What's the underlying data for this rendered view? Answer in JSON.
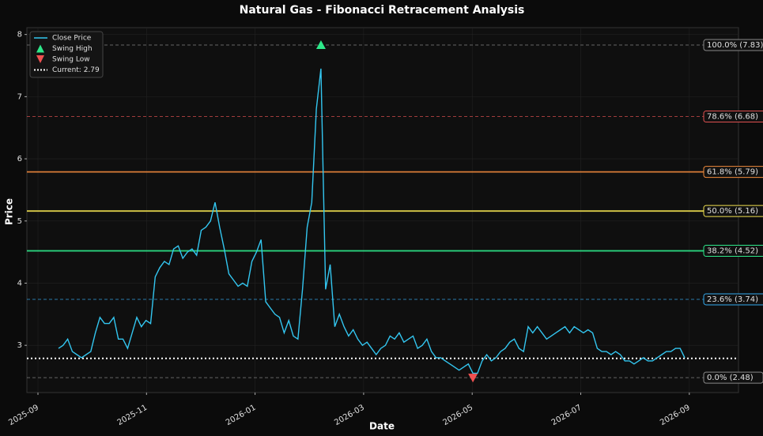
{
  "chart_data": {
    "type": "line",
    "title": "Natural Gas - Fibonacci Retracement Analysis",
    "x_label": "Date",
    "y_label": "Price",
    "xticks": [
      "2025-09",
      "2025-11",
      "2026-01",
      "2026-03",
      "2026-05",
      "2026-07",
      "2026-09"
    ],
    "ylim": [
      2.24,
      8.11
    ],
    "yticks": [
      3,
      4,
      5,
      6,
      7,
      8
    ],
    "grid": true,
    "legend": "upper left",
    "series": [
      {
        "name": "Close Price",
        "color": "#33c6f0",
        "values": [
          2.95,
          3.0,
          3.1,
          2.9,
          2.85,
          2.8,
          2.85,
          2.9,
          3.2,
          3.45,
          3.35,
          3.35,
          3.45,
          3.1,
          3.1,
          2.95,
          3.2,
          3.45,
          3.3,
          3.4,
          3.35,
          4.1,
          4.25,
          4.35,
          4.3,
          4.55,
          4.6,
          4.4,
          4.5,
          4.55,
          4.45,
          4.85,
          4.9,
          5.0,
          5.3,
          4.9,
          4.55,
          4.15,
          4.05,
          3.95,
          4.0,
          3.95,
          4.35,
          4.5,
          4.7,
          3.7,
          3.6,
          3.5,
          3.45,
          3.2,
          3.4,
          3.15,
          3.1,
          3.9,
          4.9,
          5.3,
          6.8,
          7.45,
          3.9,
          4.3,
          3.3,
          3.5,
          3.3,
          3.15,
          3.25,
          3.1,
          3.0,
          3.05,
          2.95,
          2.85,
          2.95,
          3.0,
          3.15,
          3.1,
          3.2,
          3.05,
          3.1,
          3.15,
          2.95,
          3.0,
          3.1,
          2.9,
          2.8,
          2.8,
          2.75,
          2.7,
          2.65,
          2.6,
          2.65,
          2.7,
          2.55,
          2.55,
          2.75,
          2.85,
          2.75,
          2.8,
          2.9,
          2.95,
          3.05,
          3.1,
          2.95,
          2.9,
          3.3,
          3.2,
          3.3,
          3.2,
          3.1,
          3.15,
          3.2,
          3.25,
          3.3,
          3.2,
          3.3,
          3.25,
          3.2,
          3.25,
          3.2,
          2.95,
          2.9,
          2.9,
          2.85,
          2.9,
          2.85,
          2.75,
          2.75,
          2.7,
          2.75,
          2.8,
          2.75,
          2.75,
          2.8,
          2.85,
          2.9,
          2.9,
          2.95,
          2.95,
          2.8
        ]
      }
    ],
    "swing_high": {
      "name": "Swing High",
      "value": 7.83,
      "color": "#2ee88a"
    },
    "swing_low": {
      "name": "Swing Low",
      "value": 2.48,
      "color": "#f05050"
    },
    "current": {
      "name": "Current: 2.79",
      "value": 2.79,
      "color": "#ffffff"
    },
    "levels": [
      {
        "label": "100.0% (7.83)",
        "value": 7.83,
        "color": "#888888",
        "style": "dashed"
      },
      {
        "label": "78.6% (6.68)",
        "value": 6.68,
        "color": "#e05050",
        "style": "dashed"
      },
      {
        "label": "61.8% (5.79)",
        "value": 5.79,
        "color": "#f08a3c",
        "style": "solid"
      },
      {
        "label": "50.0% (5.16)",
        "value": 5.16,
        "color": "#f0e050",
        "style": "solid"
      },
      {
        "label": "38.2% (4.52)",
        "value": 4.52,
        "color": "#2ee88a",
        "style": "solid"
      },
      {
        "label": "23.6% (3.74)",
        "value": 3.74,
        "color": "#33aaee",
        "style": "dashed"
      },
      {
        "label": "0.0% (2.48)",
        "value": 2.48,
        "color": "#888888",
        "style": "dashed"
      }
    ]
  }
}
